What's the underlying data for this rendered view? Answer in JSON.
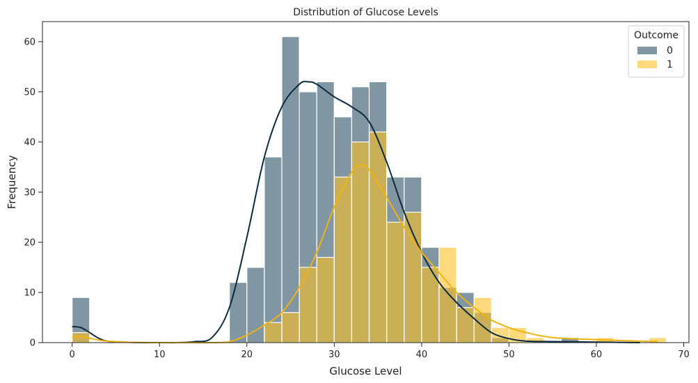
{
  "chart_data": {
    "type": "bar",
    "title": "Distribution of Glucose Levels",
    "xlabel": "Glucose Level",
    "ylabel": "Frequency",
    "xlim": [
      -3.4,
      70.6
    ],
    "ylim": [
      0,
      64
    ],
    "xticks": [
      0,
      10,
      20,
      30,
      40,
      50,
      60,
      70
    ],
    "yticks": [
      0,
      10,
      20,
      30,
      40,
      50,
      60
    ],
    "grid": false,
    "legend": {
      "title": "Outcome",
      "placement": "top-right"
    },
    "bin_width": 2,
    "bin_start": 0,
    "series": [
      {
        "name": "0",
        "color": "#4a6a7a",
        "kde_color": "#0a2b40",
        "values": [
          9,
          0,
          0,
          0,
          0,
          0,
          0,
          0,
          0,
          12,
          15,
          37,
          61,
          50,
          52,
          45,
          51,
          52,
          33,
          33,
          19,
          11,
          10,
          6,
          1,
          0,
          0,
          0,
          1,
          0,
          0,
          0,
          0,
          0
        ]
      },
      {
        "name": "1",
        "color": "#fbbf24",
        "kde_color": "#f2b20f",
        "values": [
          2,
          0,
          0,
          0,
          0,
          0,
          0,
          0,
          0,
          0,
          0,
          4,
          6,
          15,
          17,
          33,
          40,
          42,
          24,
          26,
          15,
          19,
          7,
          9,
          3,
          3,
          1,
          0,
          0,
          0,
          1,
          0,
          0,
          1
        ]
      }
    ],
    "kde": [
      {
        "series": "0",
        "x": [
          0,
          1,
          2,
          3,
          4,
          6,
          8,
          10,
          12,
          14,
          16,
          18,
          20,
          22,
          24,
          26,
          27,
          28,
          30,
          32,
          34,
          36,
          38,
          40,
          42,
          44,
          46,
          48,
          50,
          52,
          55,
          60,
          65
        ],
        "y": [
          3.2,
          3,
          2,
          0.9,
          0.3,
          0.1,
          0,
          0,
          0,
          0.2,
          1,
          7,
          21,
          37,
          47,
          51.5,
          52,
          51.5,
          49,
          47,
          44,
          36,
          26,
          18,
          12,
          8,
          4.8,
          2,
          0.8,
          0.3,
          0.2,
          0.1,
          0
        ]
      },
      {
        "series": "1",
        "x": [
          0,
          1,
          2,
          3,
          4,
          6,
          10,
          14,
          16,
          18,
          20,
          22,
          24,
          26,
          28,
          30,
          32,
          33,
          34,
          36,
          38,
          40,
          42,
          44,
          46,
          48,
          50,
          52,
          55,
          60,
          65,
          67
        ],
        "y": [
          1,
          1.2,
          0.9,
          0.5,
          0.3,
          0.1,
          0,
          0,
          0,
          0.2,
          1.5,
          3.5,
          6,
          11,
          18,
          27,
          34,
          35.3,
          34.5,
          29,
          23,
          18,
          14,
          10,
          7,
          4.5,
          3,
          2,
          1,
          0.6,
          0.3,
          0.2
        ]
      }
    ]
  }
}
